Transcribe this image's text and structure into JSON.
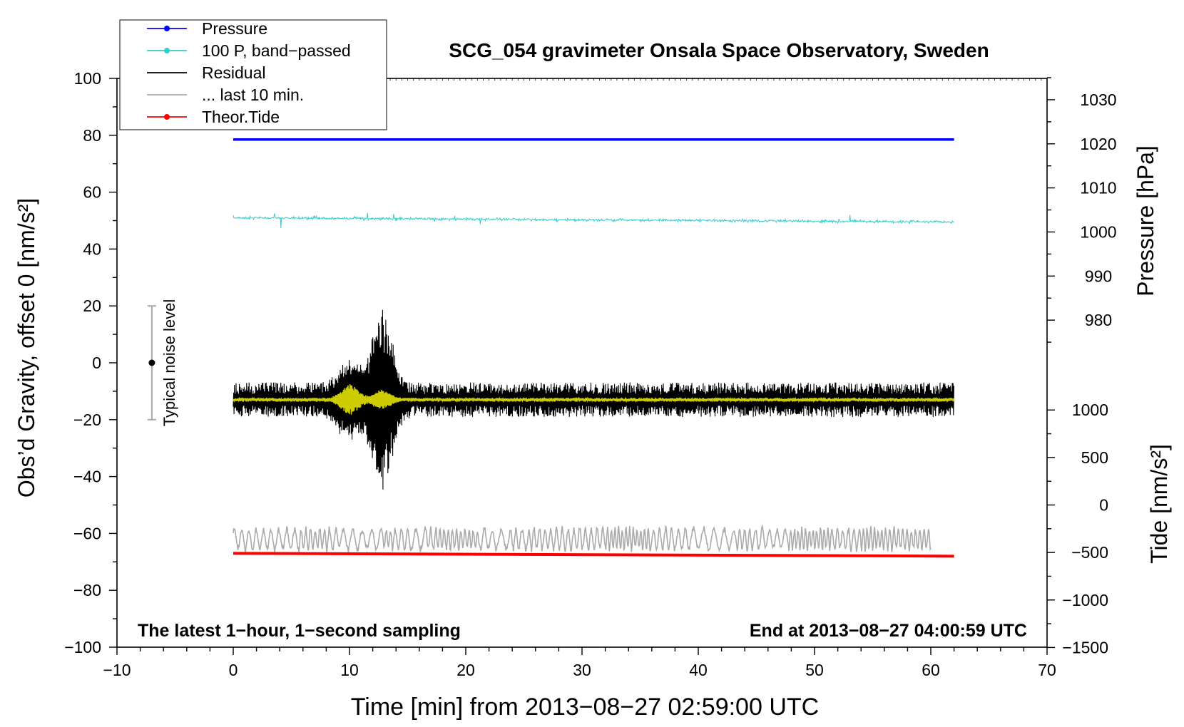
{
  "chart_data": {
    "type": "line",
    "title": "SCG_054 gravimeter Onsala Space Observatory, Sweden",
    "xlabel": "Time [min] from 2013−08−27 02:59:00 UTC",
    "ylabel_left": "Obs’d Gravity, offset 0 [nm/s²]",
    "ylabel_right_pressure": "Pressure [hPa]",
    "ylabel_right_tide": "Tide [nm/s²]",
    "xlim": [
      -10,
      70
    ],
    "ylim": [
      -100,
      100
    ],
    "x_ticks": [
      "−10",
      "0",
      "10",
      "20",
      "30",
      "40",
      "50",
      "60",
      "70"
    ],
    "y_ticks_left": [
      "100",
      "80",
      "60",
      "40",
      "20",
      "0",
      "−20",
      "−40",
      "−60",
      "−80",
      "−100"
    ],
    "pressure_axis": {
      "ticks": [
        "1030",
        "1020",
        "1010",
        "1000",
        "990",
        "980"
      ],
      "tick_values": [
        1030,
        1020,
        1010,
        1000,
        990,
        980
      ],
      "gravity_at_1000": 46.0,
      "gravity_per_hpa": 1.55
    },
    "tide_axis": {
      "ticks": [
        "1000",
        "500",
        "0",
        "−500",
        "−1000",
        "−1500"
      ],
      "tick_values": [
        1000,
        500,
        0,
        -500,
        -1000,
        -1500
      ],
      "gravity_at_0": -50.0,
      "gravity_per_unit": 0.0334
    },
    "legend": {
      "position": "top-left",
      "entries": [
        {
          "label": "Pressure",
          "color": "#0000ff",
          "marker": true
        },
        {
          "label": "100 P, band−passed",
          "color": "#33cccc",
          "marker": true
        },
        {
          "label": "Residual",
          "color": "#000000",
          "marker": false
        },
        {
          "label": "... last 10 min.",
          "color": "#aaaaaa",
          "marker": false
        },
        {
          "label": "Theor.Tide",
          "color": "#ff0000",
          "marker": true
        }
      ]
    },
    "series": [
      {
        "name": "Pressure",
        "color": "#0000ff",
        "x_range": [
          0,
          62
        ],
        "level": 78.5
      },
      {
        "name": "100 P, band-passed",
        "color": "#33cccc",
        "x_range": [
          0,
          62
        ],
        "start": 51,
        "end": 49.5,
        "noise": 0.5
      },
      {
        "name": "Residual",
        "color": "#000000",
        "x_range": [
          0,
          62
        ],
        "baseline": -13,
        "noise": 4.5,
        "burst": [
          {
            "center": 10,
            "width": 1.3,
            "amplitude": 9
          },
          {
            "center": 12.8,
            "width": 1.2,
            "amplitude": 26
          }
        ]
      },
      {
        "name": "Residual smoothed",
        "color": "#cccc00",
        "x_range": [
          0,
          62
        ],
        "baseline": -13,
        "noise": 0.6,
        "burst": [
          {
            "center": 10,
            "width": 1.0,
            "amplitude": 5
          },
          {
            "center": 12.8,
            "width": 1.0,
            "amplitude": 3
          }
        ]
      },
      {
        "name": "... last 10 min.",
        "color": "#aaaaaa",
        "x_range": [
          0,
          60
        ],
        "baseline": -62,
        "noise": 2.8
      },
      {
        "name": "Theor.Tide",
        "color": "#ff0000",
        "x": [
          0,
          62
        ],
        "values": [
          -67,
          -68
        ]
      }
    ],
    "noise_indicator": {
      "label": "Typical noise level",
      "x": -7,
      "center": 0,
      "range": [
        -20,
        20
      ]
    },
    "annotations": {
      "left": "The latest 1−hour, 1−second sampling",
      "right": "End at 2013−08−27 04:00:59 UTC"
    }
  }
}
